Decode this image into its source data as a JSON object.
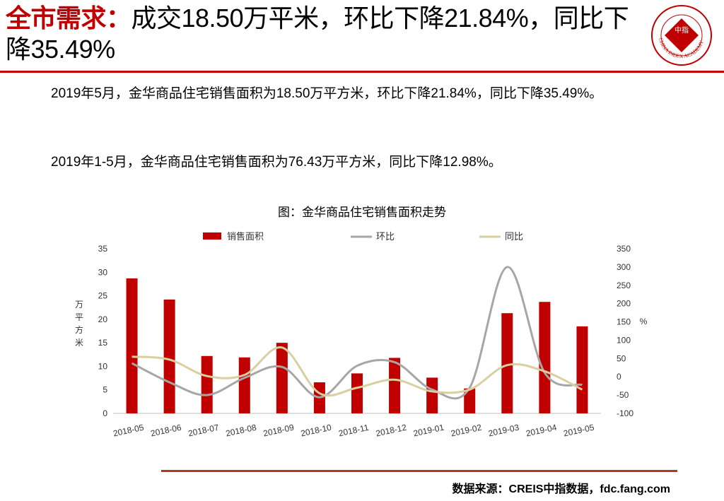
{
  "title": {
    "accent": "全市需求：",
    "rest": "成交18.50万平米，环比下降21.84%，同比下降35.49%"
  },
  "logo": {
    "alt": "中国指数研究院 CHINA INDEX ACADEMY",
    "center_text": "中指",
    "ring_text": "CHINA INDEX ACADEMY"
  },
  "paragraphs": [
    "2019年5月，金华商品住宅销售面积为18.50万平方米，环比下降21.84%，同比下降35.49%。",
    "2019年1-5月，金华商品住宅销售面积为76.43万平方米，同比下降12.98%。"
  ],
  "source": "数据来源：CREIS中指数据，fdc.fang.com",
  "colors": {
    "accent": "#c00000",
    "bar": "#c00000",
    "mom": "#a6a6a6",
    "yoy": "#d9cfa0"
  },
  "chart_data": {
    "type": "bar",
    "title": "图：金华商品住宅销售面积走势",
    "categories": [
      "2018-05",
      "2018-06",
      "2018-07",
      "2018-08",
      "2018-09",
      "2018-10",
      "2018-11",
      "2018-12",
      "2019-01",
      "2019-02",
      "2019-03",
      "2019-04",
      "2019-05"
    ],
    "series": [
      {
        "name": "销售面积",
        "type": "bar",
        "axis": "left",
        "values": [
          28.7,
          24.2,
          12.2,
          11.9,
          15.0,
          6.6,
          8.5,
          11.8,
          7.6,
          5.3,
          21.3,
          23.7,
          18.5
        ]
      },
      {
        "name": "环比",
        "type": "line",
        "axis": "right",
        "values": [
          37,
          -15,
          -50,
          -3,
          27,
          -56,
          30,
          40,
          -35,
          -30,
          300,
          11,
          -22
        ]
      },
      {
        "name": "同比",
        "type": "line",
        "axis": "right",
        "values": [
          55,
          47,
          2,
          5,
          80,
          -45,
          -30,
          -8,
          -40,
          -35,
          32,
          15,
          -35
        ]
      }
    ],
    "ylabel": "万平方米",
    "ylim": [
      0,
      35
    ],
    "yticks": [
      0,
      5,
      10,
      15,
      20,
      25,
      30,
      35
    ],
    "y2label": "%",
    "y2lim": [
      -100,
      350
    ],
    "y2ticks": [
      -100,
      -50,
      0,
      50,
      100,
      150,
      200,
      250,
      300,
      350
    ],
    "legend_position": "top"
  }
}
